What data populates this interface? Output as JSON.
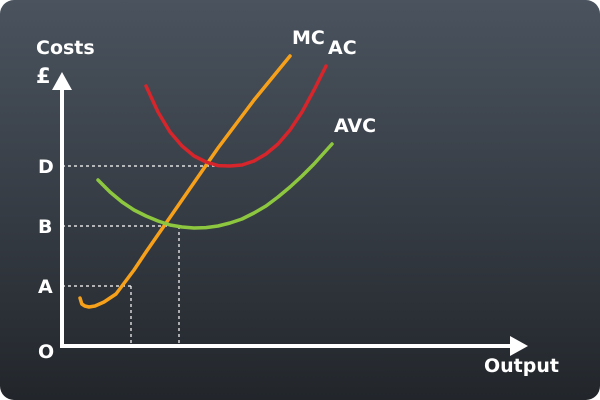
{
  "chart_data": {
    "type": "line",
    "ylabel_line1": "Costs",
    "ylabel_line2": "£",
    "xlabel": "Output",
    "origin_label": "O",
    "y_ticks": [
      "A",
      "B",
      "D"
    ],
    "grid": false,
    "legend": "inline-labels",
    "series": [
      {
        "name": "MC",
        "color": "#f7a11a",
        "x": [
          0.3,
          0.33,
          0.38,
          0.45,
          0.55,
          0.7,
          0.9,
          1.0,
          1.2,
          1.4,
          1.7,
          2.0,
          2.3,
          2.6,
          2.9,
          3.2,
          3.5,
          3.8
        ],
        "y": [
          2.4,
          2.1,
          2.0,
          1.95,
          2.0,
          2.2,
          2.6,
          3.0,
          3.8,
          4.7,
          6.0,
          7.3,
          8.6,
          9.9,
          11.1,
          12.3,
          13.4,
          14.5
        ]
      },
      {
        "name": "AC",
        "color": "#d6252b",
        "x": [
          1.4,
          1.6,
          1.8,
          2.0,
          2.2,
          2.4,
          2.6,
          2.8,
          3.0,
          3.2,
          3.4,
          3.6,
          3.8,
          4.0,
          4.2,
          4.4
        ],
        "y": [
          13.0,
          11.7,
          10.7,
          10.0,
          9.5,
          9.2,
          9.02,
          9.0,
          9.05,
          9.25,
          9.6,
          10.1,
          10.8,
          11.7,
          12.8,
          14.0
        ]
      },
      {
        "name": "AVC",
        "color": "#8dc63f",
        "x": [
          0.6,
          0.8,
          1.0,
          1.2,
          1.4,
          1.6,
          1.8,
          2.0,
          2.2,
          2.4,
          2.6,
          2.8,
          3.0,
          3.2,
          3.4,
          3.6,
          3.8,
          4.0,
          4.2,
          4.5
        ],
        "y": [
          8.3,
          7.7,
          7.2,
          6.8,
          6.5,
          6.25,
          6.05,
          5.95,
          5.9,
          5.92,
          6.0,
          6.15,
          6.35,
          6.65,
          7.0,
          7.45,
          7.95,
          8.5,
          9.1,
          10.1
        ]
      }
    ],
    "ref_points": [
      {
        "x": 1.15,
        "y": 3.0,
        "label": "A"
      },
      {
        "x": 1.95,
        "y": 6.0,
        "label": "B"
      },
      {
        "x": 2.7,
        "y": 9.0,
        "label": "D"
      }
    ]
  }
}
